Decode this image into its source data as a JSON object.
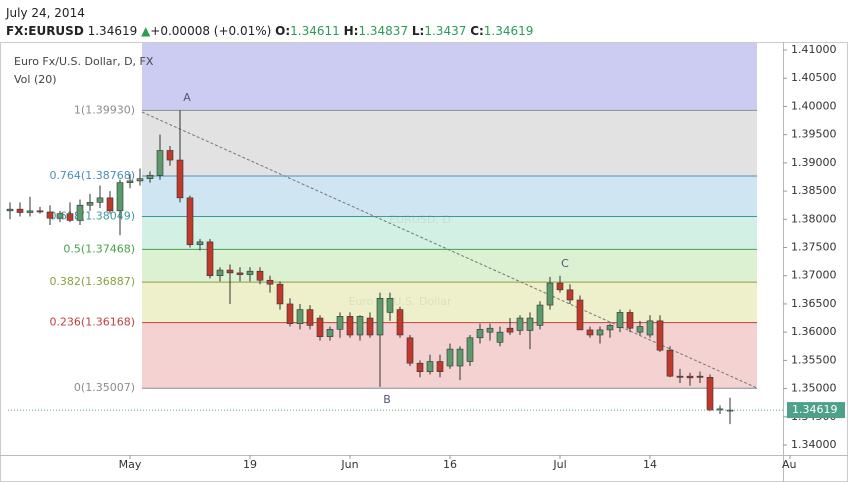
{
  "header": {
    "date": "July 24, 2014",
    "symbol": "FX:EURUSD",
    "arrow": "▲",
    "change": "+0.00008 (+0.01%)",
    "o": "O:",
    "h": "H:",
    "l": "L:",
    "c": "C:"
  },
  "chart_data": {
    "type": "candlestick",
    "title": "Euro Fx/U.S. Dollar, D, FX",
    "indicator": "Vol (20)",
    "watermark": [
      "EURUSD, D",
      "Euro Fx/U.S. Dollar"
    ],
    "x": [
      "2014-04-15",
      "2014-04-16",
      "2014-04-17",
      "2014-04-18",
      "2014-04-21",
      "2014-04-22",
      "2014-04-23",
      "2014-04-24",
      "2014-04-25",
      "2014-04-28",
      "2014-04-29",
      "2014-04-30",
      "2014-05-01",
      "2014-05-02",
      "2014-05-05",
      "2014-05-06",
      "2014-05-07",
      "2014-05-08",
      "2014-05-09",
      "2014-05-12",
      "2014-05-13",
      "2014-05-14",
      "2014-05-15",
      "2014-05-16",
      "2014-05-19",
      "2014-05-20",
      "2014-05-21",
      "2014-05-22",
      "2014-05-23",
      "2014-05-26",
      "2014-05-27",
      "2014-05-28",
      "2014-05-29",
      "2014-05-30",
      "2014-06-02",
      "2014-06-03",
      "2014-06-04",
      "2014-06-05",
      "2014-06-06",
      "2014-06-09",
      "2014-06-10",
      "2014-06-11",
      "2014-06-12",
      "2014-06-13",
      "2014-06-16",
      "2014-06-17",
      "2014-06-18",
      "2014-06-19",
      "2014-06-20",
      "2014-06-23",
      "2014-06-24",
      "2014-06-25",
      "2014-06-26",
      "2014-06-27",
      "2014-06-30",
      "2014-07-01",
      "2014-07-02",
      "2014-07-03",
      "2014-07-04",
      "2014-07-07",
      "2014-07-08",
      "2014-07-09",
      "2014-07-10",
      "2014-07-11",
      "2014-07-14",
      "2014-07-15",
      "2014-07-16",
      "2014-07-17",
      "2014-07-18",
      "2014-07-21",
      "2014-07-22",
      "2014-07-23",
      "2014-07-24"
    ],
    "open": [
      1.3815,
      1.3818,
      1.3812,
      1.3815,
      1.3813,
      1.3802,
      1.381,
      1.3798,
      1.3825,
      1.383,
      1.3838,
      1.3815,
      1.3865,
      1.3868,
      1.3872,
      1.3878,
      1.3922,
      1.3905,
      1.3838,
      1.3755,
      1.376,
      1.37,
      1.371,
      1.3705,
      1.3702,
      1.3708,
      1.3692,
      1.3685,
      1.365,
      1.3615,
      1.364,
      1.3625,
      1.3592,
      1.3605,
      1.3628,
      1.3595,
      1.3625,
      1.3595,
      1.3635,
      1.364,
      1.359,
      1.3545,
      1.353,
      1.3548,
      1.354,
      1.354,
      1.3548,
      1.359,
      1.36,
      1.3582,
      1.3607,
      1.3603,
      1.3603,
      1.3612,
      1.3648,
      1.3687,
      1.3675,
      1.3657,
      1.3604,
      1.3595,
      1.3604,
      1.3608,
      1.3635,
      1.36,
      1.3595,
      1.362,
      1.3568,
      1.3522,
      1.3522,
      1.3522,
      1.352,
      1.3462,
      1.34611
    ],
    "high": [
      1.383,
      1.383,
      1.384,
      1.3822,
      1.3825,
      1.3815,
      1.383,
      1.3835,
      1.3845,
      1.386,
      1.385,
      1.387,
      1.388,
      1.389,
      1.3885,
      1.395,
      1.393,
      1.3993,
      1.3842,
      1.3765,
      1.3765,
      1.3715,
      1.372,
      1.3715,
      1.3715,
      1.3715,
      1.37,
      1.369,
      1.366,
      1.365,
      1.3648,
      1.363,
      1.361,
      1.3635,
      1.3635,
      1.363,
      1.3635,
      1.367,
      1.367,
      1.3645,
      1.3595,
      1.355,
      1.356,
      1.356,
      1.358,
      1.3575,
      1.3595,
      1.3615,
      1.3615,
      1.361,
      1.3625,
      1.363,
      1.3635,
      1.3655,
      1.3698,
      1.37,
      1.3685,
      1.3665,
      1.361,
      1.361,
      1.3615,
      1.364,
      1.364,
      1.362,
      1.363,
      1.363,
      1.3575,
      1.3535,
      1.3528,
      1.353,
      1.3525,
      1.347,
      1.34837
    ],
    "low": [
      1.38,
      1.3805,
      1.3805,
      1.381,
      1.379,
      1.3795,
      1.3795,
      1.379,
      1.3815,
      1.382,
      1.381,
      1.3772,
      1.3855,
      1.386,
      1.3865,
      1.387,
      1.3895,
      1.383,
      1.375,
      1.3745,
      1.3695,
      1.369,
      1.365,
      1.369,
      1.369,
      1.3685,
      1.367,
      1.364,
      1.361,
      1.3605,
      1.3605,
      1.3585,
      1.3585,
      1.359,
      1.359,
      1.3585,
      1.359,
      1.3503,
      1.362,
      1.359,
      1.354,
      1.352,
      1.3525,
      1.352,
      1.3535,
      1.3515,
      1.354,
      1.358,
      1.3585,
      1.3575,
      1.3595,
      1.3595,
      1.357,
      1.3605,
      1.364,
      1.367,
      1.365,
      1.3605,
      1.359,
      1.358,
      1.359,
      1.36,
      1.36,
      1.3595,
      1.359,
      1.3565,
      1.352,
      1.351,
      1.3505,
      1.351,
      1.346,
      1.3455,
      1.3437
    ],
    "close": [
      1.3818,
      1.3812,
      1.3815,
      1.3813,
      1.3802,
      1.381,
      1.3798,
      1.3825,
      1.383,
      1.3838,
      1.3815,
      1.3865,
      1.3868,
      1.3872,
      1.3878,
      1.3922,
      1.3905,
      1.3838,
      1.3755,
      1.376,
      1.37,
      1.371,
      1.3705,
      1.3702,
      1.3708,
      1.3692,
      1.3685,
      1.365,
      1.3615,
      1.364,
      1.3612,
      1.3592,
      1.3605,
      1.3628,
      1.3595,
      1.3628,
      1.3595,
      1.366,
      1.366,
      1.3595,
      1.3545,
      1.353,
      1.3548,
      1.353,
      1.357,
      1.357,
      1.359,
      1.3605,
      1.3607,
      1.36,
      1.36,
      1.3625,
      1.3625,
      1.3648,
      1.3687,
      1.3675,
      1.3657,
      1.3604,
      1.3595,
      1.3604,
      1.3612,
      1.3635,
      1.3607,
      1.361,
      1.362,
      1.3568,
      1.3522,
      1.352,
      1.3519,
      1.352,
      1.3462,
      1.3464,
      1.34619
    ],
    "up_color": "#5b9a6a",
    "down_color": "#c0392b",
    "wick_color": "#333333",
    "ylim": [
      1.33823,
      1.41142
    ],
    "yticks": [
      {
        "value": 1.34,
        "label": "1.34000"
      },
      {
        "value": 1.345,
        "label": "1.34500"
      },
      {
        "value": 1.35,
        "label": "1.35000"
      },
      {
        "value": 1.355,
        "label": "1.35500"
      },
      {
        "value": 1.36,
        "label": "1.36000"
      },
      {
        "value": 1.365,
        "label": "1.36500"
      },
      {
        "value": 1.37,
        "label": "1.37000"
      },
      {
        "value": 1.375,
        "label": "1.37500"
      },
      {
        "value": 1.38,
        "label": "1.38000"
      },
      {
        "value": 1.385,
        "label": "1.38500"
      },
      {
        "value": 1.39,
        "label": "1.39000"
      },
      {
        "value": 1.395,
        "label": "1.39500"
      },
      {
        "value": 1.4,
        "label": "1.40000"
      },
      {
        "value": 1.405,
        "label": "1.40500"
      },
      {
        "value": 1.41,
        "label": "1.41000"
      }
    ],
    "xticks": [
      {
        "value": "2014-05-01",
        "label": "May"
      },
      {
        "value": "2014-05-19",
        "label": "19"
      },
      {
        "value": "2014-06-02",
        "label": "Jun"
      },
      {
        "value": "2014-06-16",
        "label": "16"
      },
      {
        "value": "2014-07-01",
        "label": "Jul"
      },
      {
        "value": "2014-07-14",
        "label": "14"
      },
      {
        "value": "2014-08-01",
        "label": "Au"
      }
    ],
    "fib_top_fill": "#ccccf2",
    "fib_levels": [
      {
        "label": "1(1.39930)",
        "value": 1.3993,
        "color": "#8c8c8c",
        "fill": "#e2e2e2"
      },
      {
        "label": "0.764(1.38768)",
        "value": 1.38768,
        "color": "#4a90b8",
        "fill": "#cfe5f1"
      },
      {
        "label": "0.618(1.38049)",
        "value": 1.38049,
        "color": "#3a9a9a",
        "fill": "#d2f0e4"
      },
      {
        "label": "0.5(1.37468)",
        "value": 1.37468,
        "color": "#4aa04a",
        "fill": "#dcf0d2"
      },
      {
        "label": "0.382(1.36887)",
        "value": 1.36887,
        "color": "#88a040",
        "fill": "#eef0cc"
      },
      {
        "label": "0.236(1.36168)",
        "value": 1.36168,
        "color": "#c04040",
        "fill": "#f4d2d2"
      },
      {
        "label": "0(1.35007)",
        "value": 1.35007,
        "color": "#8c8c8c",
        "fill": null
      }
    ],
    "points": [
      "A",
      "B",
      "C"
    ]
  }
}
